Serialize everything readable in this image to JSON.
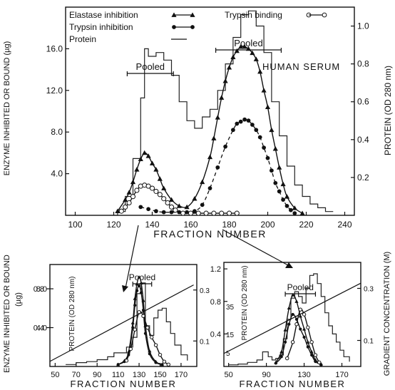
{
  "chart_data": [
    {
      "type": "line",
      "panel": "main",
      "annotation": "HUMAN SERUM",
      "xlabel": "FRACTION NUMBER",
      "ylabel": "ENZYME INHIBITED OR BOUND (µg)",
      "y2label": "PROTEIN (OD 280 nm)",
      "xlim": [
        95,
        245
      ],
      "ylim": [
        0,
        20
      ],
      "y2lim": [
        0,
        1.1
      ],
      "x_ticks": [
        "100",
        "120",
        "140",
        "160",
        "180",
        "200",
        "220",
        "240"
      ],
      "y_ticks": [
        "4.0",
        "8.0",
        "12.0",
        "16.0"
      ],
      "y2_ticks": [
        "0.2",
        "0.4",
        "0.6",
        "0.8",
        "1.0"
      ],
      "legend": [
        {
          "label": "Elastase inhibition",
          "marker": "triangle"
        },
        {
          "label": "Trypsin inhibition",
          "marker": "filled-circle"
        },
        {
          "label": "Protein",
          "marker": "line"
        },
        {
          "label": "Trypsin binding",
          "marker": "open-circle"
        }
      ],
      "pooled": [
        {
          "label": "Pooled",
          "range": [
            127,
            151
          ]
        },
        {
          "label": "Pooled",
          "range": [
            173,
            207
          ]
        }
      ],
      "series": [
        {
          "name": "Protein",
          "axis": "right",
          "style": "histogram",
          "x": [
            118,
            122,
            126,
            130,
            134,
            136,
            138,
            142,
            146,
            150,
            154,
            158,
            162,
            166,
            170,
            174,
            178,
            182,
            186,
            190,
            194,
            198,
            202,
            206,
            210,
            214,
            218,
            222,
            226,
            230,
            234
          ],
          "values": [
            0,
            0.02,
            0.1,
            0.3,
            0.62,
            0.88,
            0.84,
            0.86,
            0.82,
            0.74,
            0.6,
            0.5,
            0.46,
            0.52,
            0.56,
            0.66,
            0.8,
            0.94,
            1.06,
            1.08,
            1.0,
            0.86,
            0.6,
            0.42,
            0.26,
            0.16,
            0.1,
            0.06,
            0.04,
            0.02,
            0.02
          ]
        },
        {
          "name": "Elastase inhibition",
          "axis": "left",
          "marker": "triangle",
          "x": [
            122,
            126,
            128,
            130,
            132,
            134,
            136,
            138,
            140,
            142,
            144,
            146,
            150,
            154,
            158,
            162,
            166,
            170,
            172,
            174,
            176,
            178,
            180,
            182,
            184,
            186,
            188,
            190,
            192,
            194,
            196,
            198,
            200,
            202,
            204,
            206,
            208,
            210,
            214,
            218
          ],
          "values": [
            0.4,
            1.5,
            2.2,
            3.2,
            4.4,
            5.4,
            6.0,
            5.7,
            5.0,
            4.4,
            3.5,
            2.6,
            1.5,
            0.9,
            0.8,
            1.6,
            3.2,
            5.6,
            7.4,
            9.4,
            11.3,
            12.9,
            14.2,
            15.2,
            15.8,
            16.2,
            16.2,
            16.0,
            15.6,
            15.0,
            13.8,
            12.0,
            10.4,
            8.2,
            6.4,
            4.6,
            3.0,
            1.8,
            0.7,
            0.2
          ]
        },
        {
          "name": "Trypsin inhibition",
          "axis": "left",
          "marker": "filled-circle",
          "x": [
            134,
            138,
            142,
            146,
            150,
            154,
            158,
            162,
            166,
            170,
            174,
            178,
            182,
            184,
            186,
            188,
            190,
            192,
            194,
            196,
            198,
            200,
            202,
            204,
            206,
            208,
            210,
            212,
            214
          ],
          "values": [
            0.8,
            0.6,
            0.4,
            0.3,
            0.3,
            0.3,
            0.3,
            0.4,
            1.0,
            2.6,
            4.6,
            6.6,
            8.2,
            8.8,
            9.0,
            9.2,
            9.1,
            8.7,
            8.2,
            7.5,
            6.5,
            5.5,
            4.3,
            3.1,
            2.3,
            1.5,
            0.9,
            0.5,
            0.2
          ]
        },
        {
          "name": "Trypsin binding",
          "axis": "left",
          "marker": "open-circle",
          "x": [
            124,
            126,
            128,
            130,
            132,
            134,
            136,
            138,
            140,
            142,
            144,
            146,
            148,
            150,
            152,
            156,
            160,
            164,
            168,
            172,
            176,
            180,
            184
          ],
          "values": [
            0.4,
            0.8,
            1.2,
            1.8,
            2.4,
            2.8,
            2.9,
            2.8,
            2.6,
            2.3,
            2.0,
            1.6,
            1.2,
            0.8,
            0.5,
            0.2,
            0.2,
            0.2,
            0.2,
            0.2,
            0.2,
            0.2,
            0.2
          ]
        }
      ]
    },
    {
      "type": "line",
      "panel": "inset-left",
      "xlabel": "FRACTION NUMBER",
      "ylabel": "ENZYME INHIBITED OR BOUND (µg)",
      "y2label": "PROTEIN (OD 280 nm)",
      "xlim": [
        45,
        185
      ],
      "ylim": [
        0,
        10.5
      ],
      "y2lim": [
        0,
        1.05
      ],
      "x_ticks": [
        "50",
        "70",
        "90",
        "110",
        "130",
        "150",
        "170"
      ],
      "y_ticks": [
        "4.0",
        "8.0"
      ],
      "y2_ticks": [
        "0.4",
        "0.8"
      ],
      "gradient_ticks": [
        "0.1",
        "0.3"
      ],
      "pooled": [
        {
          "label": "Pooled",
          "range": [
            124,
            142
          ]
        }
      ],
      "series": [
        {
          "name": "Protein",
          "axis": "right",
          "style": "histogram",
          "x": [
            60,
            70,
            80,
            90,
            100,
            106,
            112,
            118,
            124,
            128,
            132,
            136,
            140,
            144,
            148,
            152,
            156,
            160,
            164,
            170,
            176
          ],
          "values": [
            0.02,
            0.04,
            0.05,
            0.07,
            0.1,
            0.14,
            0.14,
            0.2,
            0.3,
            0.75,
            0.86,
            0.42,
            0.32,
            0.5,
            0.58,
            0.6,
            0.46,
            0.34,
            0.22,
            0.12,
            0.06
          ]
        },
        {
          "name": "Elastase inhibition",
          "axis": "left",
          "marker": "triangle",
          "x": [
            110,
            116,
            120,
            124,
            126,
            128,
            130,
            132,
            134,
            136,
            140,
            146,
            152
          ],
          "values": [
            0.2,
            0.6,
            1.5,
            4.5,
            7.0,
            8.5,
            9.2,
            8.6,
            6.8,
            4.2,
            1.6,
            0.5,
            0.2
          ]
        },
        {
          "name": "Trypsin inhibition",
          "axis": "left",
          "marker": "filled-circle",
          "x": [
            110,
            116,
            120,
            124,
            126,
            128,
            130,
            132,
            134,
            136,
            140,
            146,
            152
          ],
          "values": [
            0.2,
            0.5,
            1.2,
            4.0,
            6.3,
            7.8,
            8.3,
            7.6,
            5.8,
            3.4,
            1.3,
            0.4,
            0.2
          ]
        },
        {
          "name": "Trypsin binding",
          "axis": "left",
          "marker": "open-circle",
          "x": [
            118,
            122,
            126,
            130,
            134,
            138,
            142,
            146,
            150,
            154,
            158
          ],
          "values": [
            0.6,
            1.8,
            3.8,
            5.6,
            5.2,
            4.0,
            3.0,
            2.2,
            1.2,
            0.5,
            0.2
          ]
        },
        {
          "name": "Salt gradient",
          "axis": "gradient",
          "style": "line",
          "x": [
            45,
            182
          ],
          "values": [
            0.02,
            0.32
          ]
        }
      ]
    },
    {
      "type": "line",
      "panel": "inset-right",
      "xlabel": "FRACTION NUMBER",
      "ylabel": "PROTEIN (OD 280 nm)",
      "y2label": "GRADIENT CONCENTRATION (M)",
      "xlim": [
        45,
        190
      ],
      "ylim": [
        0,
        1.28
      ],
      "x_ticks": [
        "50",
        "90",
        "130",
        "170"
      ],
      "y_ticks": [
        "1.2",
        "0.8",
        "0.4"
      ],
      "y_ticks_small": [
        "35",
        "15",
        "5"
      ],
      "y2_ticks": [
        "0.3",
        "0.1"
      ],
      "pooled": [
        {
          "label": "Pooled",
          "range": [
            110,
            142
          ]
        }
      ],
      "series": [
        {
          "name": "Protein",
          "axis": "left",
          "style": "histogram",
          "x": [
            50,
            60,
            70,
            80,
            86,
            92,
            96,
            100,
            104,
            108,
            112,
            116,
            120,
            124,
            128,
            132,
            136,
            140,
            144,
            148,
            152,
            156,
            160,
            164,
            168,
            172,
            178
          ],
          "values": [
            0.02,
            0.03,
            0.05,
            0.08,
            0.18,
            0.12,
            0.08,
            0.1,
            0.14,
            0.34,
            0.58,
            0.84,
            0.92,
            0.86,
            0.78,
            0.96,
            1.12,
            1.14,
            1.02,
            0.86,
            0.66,
            0.5,
            0.4,
            0.3,
            0.2,
            0.12,
            0.06
          ]
        },
        {
          "name": "Elastase inhibition",
          "axis": "left",
          "marker": "triangle",
          "x": [
            100,
            106,
            110,
            114,
            118,
            122,
            126,
            130,
            134,
            138,
            142,
            148
          ],
          "values": [
            0.05,
            0.18,
            0.45,
            0.72,
            0.88,
            0.8,
            0.62,
            0.46,
            0.3,
            0.18,
            0.08,
            0.03
          ]
        },
        {
          "name": "Trypsin inhibition",
          "axis": "left",
          "marker": "filled-circle",
          "x": [
            100,
            106,
            110,
            114,
            118,
            122,
            126,
            130,
            134,
            138,
            142,
            148
          ],
          "values": [
            0.04,
            0.12,
            0.3,
            0.52,
            0.64,
            0.58,
            0.46,
            0.36,
            0.24,
            0.14,
            0.06,
            0.02
          ]
        },
        {
          "name": "Trypsin binding",
          "axis": "left",
          "marker": "open-circle",
          "x": [
            112,
            118,
            122,
            126,
            130,
            134,
            138,
            142,
            146
          ],
          "values": [
            0.1,
            0.3,
            0.52,
            0.7,
            0.64,
            0.48,
            0.3,
            0.14,
            0.05
          ]
        },
        {
          "name": "Salt gradient",
          "axis": "gradient",
          "style": "line",
          "x": [
            45,
            190
          ],
          "values": [
            0.05,
            0.32
          ]
        }
      ]
    }
  ],
  "left_axis_title_bottom": "ENZYME INHIBITED OR BOUND",
  "left_axis_unit_bottom": "(µg)",
  "right_axis_title_bottom": "GRADIENT CONCENTRATION (M)"
}
